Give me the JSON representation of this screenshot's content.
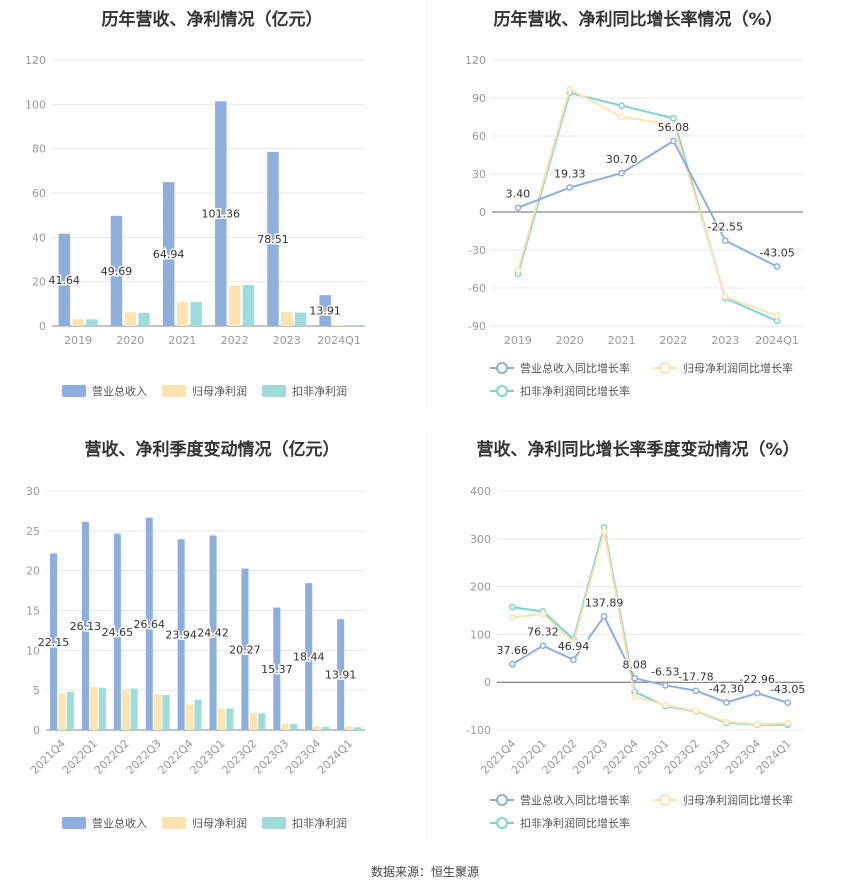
{
  "source": "数据来源：恒生聚源",
  "colors": {
    "revenue": "#8eaedd",
    "parent_profit": "#fce3b0",
    "deducted_profit": "#9edcdc",
    "line_revenue": "#8eaedd",
    "line_parent": "#fce3b0",
    "line_deducted": "#7fd3d3"
  },
  "chart_data": [
    {
      "type": "bar",
      "title": "历年营收、净利情况（亿元）",
      "categories": [
        "2019",
        "2020",
        "2021",
        "2022",
        "2023",
        "2024Q1"
      ],
      "ylim": [
        0,
        120
      ],
      "yticks": [
        0,
        20,
        40,
        60,
        80,
        100,
        120
      ],
      "grid": true,
      "legend": "bottom",
      "series": [
        {
          "name": "营业总收入",
          "values": [
            41.64,
            49.69,
            64.94,
            101.36,
            78.51,
            13.91
          ],
          "labels": [
            "41.64",
            "49.69",
            "64.94",
            "101.36",
            "78.51",
            "13.91"
          ]
        },
        {
          "name": "归母净利润",
          "values": [
            3.0,
            6.2,
            10.8,
            18.2,
            6.2,
            0.4
          ]
        },
        {
          "name": "扣非净利润",
          "values": [
            3.0,
            5.9,
            10.8,
            18.5,
            6.1,
            0.35
          ]
        }
      ]
    },
    {
      "type": "line",
      "title": "历年营收、净利同比增长率情况（%）",
      "categories": [
        "2019",
        "2020",
        "2021",
        "2022",
        "2023",
        "2024Q1"
      ],
      "ylim": [
        -90,
        120
      ],
      "yticks": [
        -90,
        -60,
        -30,
        0,
        30,
        60,
        90,
        120
      ],
      "grid": true,
      "legend": "bottom",
      "series": [
        {
          "name": "营业总收入同比增长率",
          "values": [
            3.4,
            19.33,
            30.7,
            56.08,
            -22.55,
            -43.05
          ],
          "labels": [
            "3.40",
            "19.33",
            "30.70",
            "56.08",
            "-22.55",
            "-43.05"
          ]
        },
        {
          "name": "归母净利润同比增长率",
          "values": [
            -46,
            97,
            75,
            69,
            -67,
            -82
          ]
        },
        {
          "name": "扣非净利润同比增长率",
          "values": [
            -49,
            94,
            84,
            74,
            -68,
            -86
          ]
        }
      ]
    },
    {
      "type": "bar",
      "title": "营收、净利季度变动情况（亿元）",
      "categories": [
        "2021Q4",
        "2022Q1",
        "2022Q2",
        "2022Q3",
        "2022Q4",
        "2023Q1",
        "2023Q2",
        "2023Q3",
        "2023Q4",
        "2024Q1"
      ],
      "ylim": [
        0,
        30
      ],
      "yticks": [
        0,
        5,
        10,
        15,
        20,
        25,
        30
      ],
      "grid": true,
      "legend": "bottom",
      "series": [
        {
          "name": "营业总收入",
          "values": [
            22.15,
            26.13,
            24.65,
            26.64,
            23.94,
            24.42,
            20.27,
            15.37,
            18.44,
            13.91
          ],
          "labels": [
            "22.15",
            "26.13",
            "24.65",
            "26.64",
            "23.94",
            "24.42",
            "20.27",
            "15.37",
            "18.44",
            "13.91"
          ]
        },
        {
          "name": "归母净利润",
          "values": [
            4.6,
            5.4,
            5.1,
            4.5,
            3.2,
            2.7,
            2.1,
            0.8,
            0.45,
            0.45
          ]
        },
        {
          "name": "扣非净利润",
          "values": [
            4.8,
            5.3,
            5.2,
            4.4,
            3.8,
            2.7,
            2.1,
            0.75,
            0.4,
            0.35
          ]
        }
      ]
    },
    {
      "type": "line",
      "title": "营收、净利同比增长率季度变动情况（%）",
      "categories": [
        "2021Q4",
        "2022Q1",
        "2022Q2",
        "2022Q3",
        "2022Q4",
        "2023Q1",
        "2023Q2",
        "2023Q3",
        "2023Q4",
        "2024Q1"
      ],
      "ylim": [
        -100,
        400
      ],
      "yticks": [
        -100,
        0,
        100,
        200,
        300,
        400
      ],
      "grid": true,
      "legend": "bottom",
      "series": [
        {
          "name": "营业总收入同比增长率",
          "values": [
            37.66,
            76.32,
            46.94,
            137.89,
            8.08,
            -6.53,
            -17.78,
            -42.3,
            -22.96,
            -43.05
          ],
          "labels": [
            "37.66",
            "76.32",
            "46.94",
            "137.89",
            "8.08",
            "-6.53",
            "-17.78",
            "-42.30",
            "-22.96",
            "-43.05"
          ]
        },
        {
          "name": "归母净利润同比增长率",
          "values": [
            135,
            143,
            83,
            315,
            -30,
            -48,
            -60,
            -83,
            -88,
            -86
          ]
        },
        {
          "name": "扣非净利润同比增长率",
          "values": [
            157,
            148,
            90,
            324,
            -20,
            -50,
            -61,
            -85,
            -89,
            -89
          ]
        }
      ]
    }
  ]
}
